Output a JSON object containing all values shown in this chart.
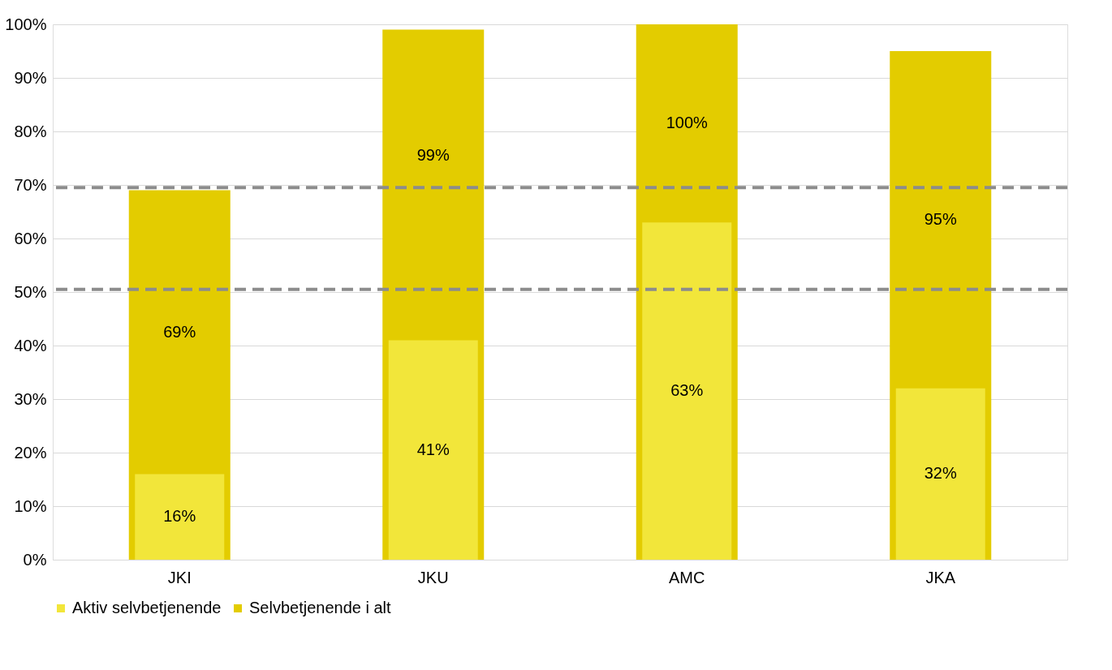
{
  "chart_data": {
    "type": "bar",
    "categories": [
      "JKI",
      "JKU",
      "AMC",
      "JKA"
    ],
    "series": [
      {
        "name": "Aktiv selvbetjenende",
        "color": "#f2e63a",
        "values": [
          16,
          41,
          63,
          32
        ],
        "value_labels": [
          "16%",
          "41%",
          "63%",
          "32%"
        ]
      },
      {
        "name": "Selvbetjenende i alt",
        "color": "#e3cc00",
        "values": [
          69,
          99,
          100,
          95
        ],
        "value_labels": [
          "69%",
          "99%",
          "100%",
          "95%"
        ]
      }
    ],
    "ylim": [
      0,
      100
    ],
    "yticks": [
      {
        "value": 0,
        "label": "0%"
      },
      {
        "value": 10,
        "label": "10%"
      },
      {
        "value": 20,
        "label": "20%"
      },
      {
        "value": 30,
        "label": "30%"
      },
      {
        "value": 40,
        "label": "40%"
      },
      {
        "value": 50,
        "label": "50%"
      },
      {
        "value": 60,
        "label": "60%"
      },
      {
        "value": 70,
        "label": "70%"
      },
      {
        "value": 80,
        "label": "80%"
      },
      {
        "value": 90,
        "label": "90%"
      },
      {
        "value": 100,
        "label": "100%"
      }
    ],
    "ref_lines": [
      {
        "axis": "y",
        "value": 69.5,
        "color": "#8c8c8c",
        "line_style": "dashed"
      },
      {
        "axis": "y",
        "value": 50.5,
        "color": "#8c8c8c",
        "line_style": "dashed"
      }
    ],
    "grid": "y",
    "legend": "bottom"
  }
}
